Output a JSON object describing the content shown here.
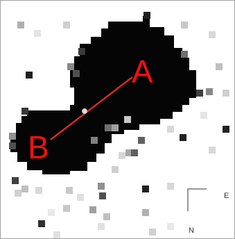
{
  "image": {
    "subject": "pixelated-binary-blob",
    "background": "#ffffff",
    "blob_color": "#050505"
  },
  "annotations": {
    "line_color": "#d42a2a",
    "label_color": "#f01010",
    "label_a": "A",
    "label_b": "B"
  },
  "compass": {
    "east": "E",
    "north": "N",
    "line_color": "#333333"
  }
}
